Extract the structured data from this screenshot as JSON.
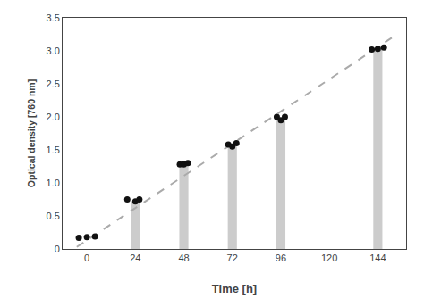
{
  "chart_data": {
    "type": "scatter",
    "xlabel": "Time [h]",
    "ylabel": "Optical density [760 nm]",
    "xlim": [
      -12,
      158
    ],
    "ylim": [
      0.0,
      3.5
    ],
    "xticks": [
      0,
      24,
      48,
      72,
      96,
      120,
      144
    ],
    "yticks": [
      0.0,
      {
        "value": 0.5,
        "label": "0.5"
      },
      {
        "value": 1.0,
        "label": "1.0"
      },
      {
        "value": 1.5,
        "label": "1.5"
      },
      {
        "value": 2.0,
        "label": "2.0"
      },
      {
        "value": 2.5,
        "label": "2.5"
      },
      {
        "value": 3.0,
        "label": "3.0"
      },
      {
        "value": 3.5,
        "label": "3.5"
      }
    ],
    "grid": false,
    "series": [
      {
        "type": "bar",
        "color": "#cccccc",
        "x": [
          24,
          48,
          72,
          96,
          144
        ],
        "values": [
          0.72,
          1.28,
          1.55,
          1.95,
          3.02
        ]
      },
      {
        "type": "line",
        "color": "#aaaaaa",
        "line_style": "dashed",
        "x": [
          -5,
          152
        ],
        "values": [
          0.03,
          3.22
        ]
      },
      {
        "type": "scatter",
        "color": "#111111",
        "marker": "circle",
        "x": [
          -4,
          0,
          4,
          20,
          24,
          26,
          46,
          48,
          50,
          70,
          72,
          74,
          94,
          96,
          98,
          141,
          144,
          147
        ],
        "values": [
          0.17,
          0.18,
          0.19,
          0.75,
          0.72,
          0.75,
          1.28,
          1.28,
          1.3,
          1.58,
          1.55,
          1.6,
          2.0,
          1.95,
          2.0,
          3.02,
          3.03,
          3.05
        ]
      }
    ]
  }
}
